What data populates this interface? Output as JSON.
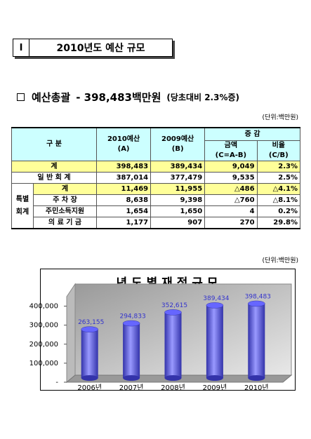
{
  "header": {
    "number": "Ⅰ",
    "title": "2010년도 예산 규모"
  },
  "summary": {
    "label": "예산총괄",
    "amount": "- 398,483백만원",
    "note": "(당초대비 2.3%증)"
  },
  "units": [
    "(단위:백만원)",
    "(단위:백만원)"
  ],
  "table": {
    "head": {
      "category": "구 분",
      "col_a": [
        "2010예산",
        "(A)"
      ],
      "col_b": [
        "2009예산",
        "(B)"
      ],
      "change": "증 감",
      "amount": [
        "금액",
        "(C=A-B)"
      ],
      "ratio": [
        "비율",
        "(C/B)"
      ]
    },
    "group": "특별\n회계",
    "rows": [
      [
        "계",
        "398,483",
        "389,434",
        "9,049",
        "2.3%"
      ],
      [
        "일 반 회 계",
        "387,014",
        "377,479",
        "9,535",
        "2.5%"
      ],
      [
        "계",
        "11,469",
        "11,955",
        "△486",
        "△4.1%"
      ],
      [
        "주 차 장",
        "8,638",
        "9,398",
        "△760",
        "△8.1%"
      ],
      [
        "주민소득지원",
        "1,654",
        "1,650",
        "4",
        "0.2%"
      ],
      [
        "의 료 기 금",
        "1,177",
        "907",
        "270",
        "29.8%"
      ]
    ]
  },
  "chart_data": {
    "type": "bar",
    "title": "년 도 별 재 정 규 모",
    "categories": [
      "2006년",
      "2007년",
      "2008년",
      "2009년",
      "2010년"
    ],
    "values": [
      263155,
      294833,
      352615,
      389434,
      398483
    ],
    "value_labels": [
      "263,155",
      "294,833",
      "352,615",
      "389,434",
      "398,483"
    ],
    "color": "#6666ff",
    "ylim": [
      0,
      450000
    ],
    "yticks": [
      {
        "value": 0,
        "label": "-"
      },
      {
        "value": 100000,
        "label": "100,000"
      },
      {
        "value": 200000,
        "label": "200,000"
      },
      {
        "value": 300000,
        "label": "300,000"
      },
      {
        "value": 400000,
        "label": "400,000"
      }
    ]
  }
}
